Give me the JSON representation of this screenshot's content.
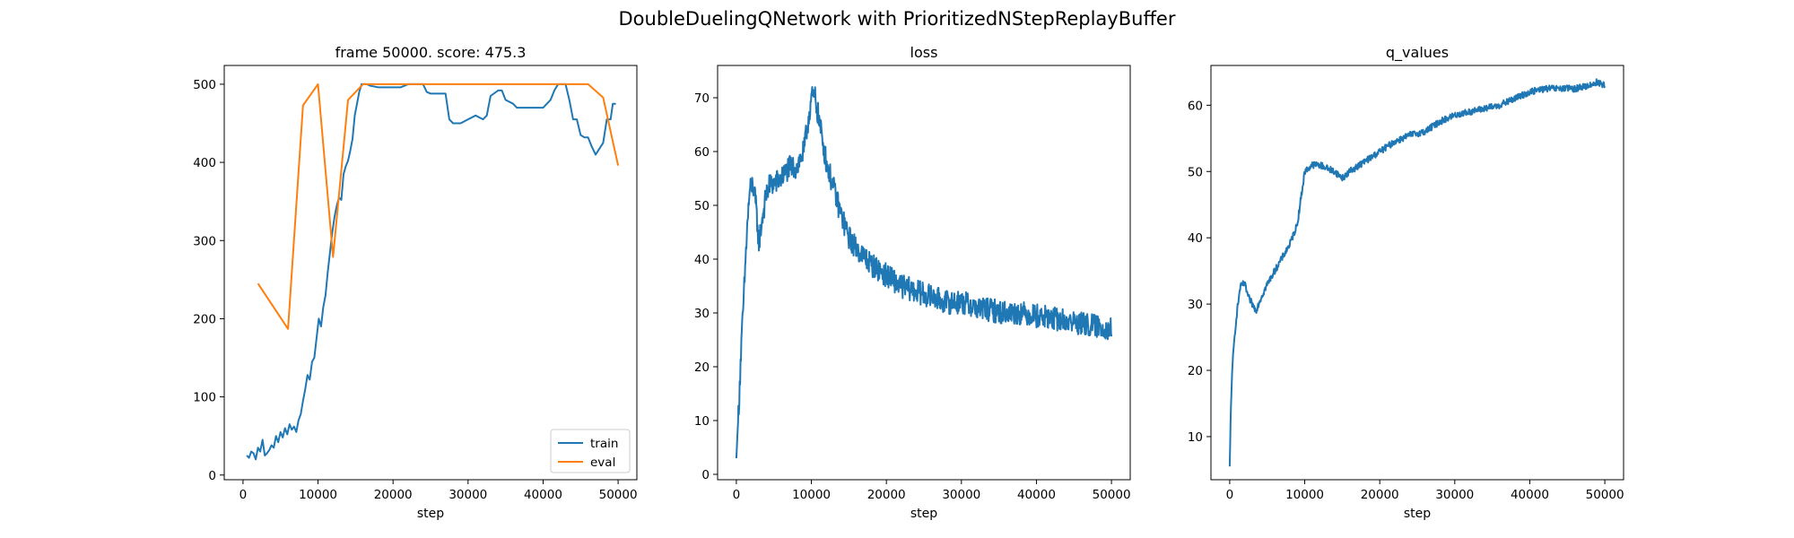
{
  "figure": {
    "suptitle": "DoubleDuelingQNetwork with PrioritizedNStepReplayBuffer"
  },
  "chart_data": [
    {
      "type": "line",
      "title": "frame 50000. score: 475.3",
      "xlabel": "step",
      "ylabel": "",
      "xlim": [
        -2500,
        52500
      ],
      "ylim": [
        -6,
        524
      ],
      "xticks": [
        0,
        10000,
        20000,
        30000,
        40000,
        50000
      ],
      "yticks": [
        0,
        100,
        200,
        300,
        400,
        500
      ],
      "grid": false,
      "legend": "lower right",
      "series": [
        {
          "name": "train",
          "color": "#1f77b4",
          "x": [
            500,
            800,
            1100,
            1400,
            1700,
            2000,
            2300,
            2600,
            2900,
            3200,
            3500,
            3800,
            4100,
            4400,
            4700,
            5000,
            5300,
            5600,
            5900,
            6200,
            6500,
            6800,
            7100,
            7400,
            7700,
            8000,
            8300,
            8600,
            8900,
            9200,
            9500,
            9800,
            10100,
            10400,
            10700,
            11000,
            11300,
            11600,
            11900,
            12200,
            12500,
            12800,
            13100,
            13400,
            13700,
            14000,
            14300,
            14600,
            14900,
            15200,
            15500,
            15800,
            16100,
            16500,
            17000,
            18000,
            19000,
            20000,
            21000,
            22000,
            23000,
            24000,
            24500,
            25000,
            26000,
            27000,
            27500,
            28000,
            29000,
            30000,
            31000,
            32000,
            32500,
            33000,
            34000,
            34500,
            35000,
            36000,
            36500,
            37000,
            38000,
            39000,
            40000,
            41000,
            41500,
            42000,
            43000,
            43500,
            44000,
            44500,
            45000,
            45500,
            46000,
            46500,
            47000,
            48000,
            48500,
            49000,
            49300,
            49700
          ],
          "y": [
            25,
            22,
            30,
            28,
            20,
            35,
            30,
            45,
            25,
            28,
            32,
            38,
            35,
            50,
            42,
            55,
            48,
            60,
            52,
            65,
            58,
            62,
            55,
            70,
            78,
            95,
            110,
            128,
            122,
            145,
            150,
            175,
            200,
            190,
            215,
            230,
            260,
            285,
            310,
            330,
            345,
            355,
            352,
            385,
            395,
            402,
            415,
            430,
            460,
            475,
            490,
            500,
            500,
            500,
            498,
            496,
            496,
            496,
            496,
            500,
            500,
            500,
            490,
            488,
            488,
            488,
            455,
            450,
            450,
            455,
            460,
            455,
            460,
            485,
            492,
            492,
            480,
            475,
            470,
            470,
            470,
            470,
            470,
            480,
            492,
            500,
            500,
            480,
            455,
            455,
            435,
            432,
            432,
            420,
            410,
            425,
            455,
            455,
            475,
            475
          ]
        },
        {
          "name": "eval",
          "color": "#ff7f0e",
          "x": [
            2000,
            6000,
            8000,
            10000,
            12000,
            14000,
            16000,
            18000,
            20000,
            22000,
            24000,
            26000,
            28000,
            30000,
            32000,
            34000,
            36000,
            38000,
            40000,
            42000,
            44000,
            46000,
            48000,
            50000
          ],
          "y": [
            245,
            187,
            473,
            500,
            279,
            480,
            500,
            500,
            500,
            500,
            500,
            500,
            500,
            500,
            500,
            500,
            500,
            500,
            500,
            500,
            500,
            500,
            483,
            396
          ]
        }
      ]
    },
    {
      "type": "line",
      "title": "loss",
      "xlabel": "step",
      "ylabel": "",
      "xlim": [
        -2500,
        52500
      ],
      "ylim": [
        -1,
        76
      ],
      "xticks": [
        0,
        10000,
        20000,
        30000,
        40000,
        50000
      ],
      "yticks": [
        0,
        10,
        20,
        30,
        40,
        50,
        60,
        70
      ],
      "grid": false,
      "series": [
        {
          "name": "",
          "color": "#1f77b4",
          "noise": 2.2,
          "x": [
            0,
            300,
            600,
            1000,
            1400,
            1800,
            2200,
            2600,
            3000,
            3500,
            4000,
            4500,
            5000,
            6000,
            7000,
            8000,
            9000,
            9500,
            10000,
            10500,
            11000,
            11500,
            12000,
            13000,
            14000,
            15000,
            16000,
            18000,
            20000,
            22000,
            24000,
            26000,
            28000,
            30000,
            32000,
            34000,
            36000,
            38000,
            40000,
            42000,
            44000,
            46000,
            48000,
            50000
          ],
          "y": [
            3,
            12,
            22,
            33,
            45,
            53,
            54,
            50,
            43,
            48,
            52,
            54,
            54,
            55,
            57,
            57,
            60,
            65,
            70,
            70,
            66,
            62,
            58,
            53,
            48,
            44,
            42,
            39,
            37,
            35,
            34,
            33,
            32,
            32,
            31,
            30.5,
            30,
            30,
            29.5,
            29,
            28.5,
            28,
            27.5,
            27
          ]
        }
      ]
    },
    {
      "type": "line",
      "title": "q_values",
      "xlabel": "step",
      "ylabel": "",
      "xlim": [
        -2500,
        52500
      ],
      "ylim": [
        3.5,
        66
      ],
      "xticks": [
        0,
        10000,
        20000,
        30000,
        40000,
        50000
      ],
      "yticks": [
        10,
        20,
        30,
        40,
        50,
        60
      ],
      "grid": false,
      "series": [
        {
          "name": "",
          "color": "#1f77b4",
          "noise": 0.5,
          "x": [
            0,
            150,
            300,
            500,
            800,
            1100,
            1400,
            1700,
            2000,
            2500,
            3000,
            3500,
            4000,
            5000,
            6000,
            7000,
            8000,
            9000,
            9500,
            10000,
            11000,
            12000,
            13000,
            14000,
            15000,
            16000,
            18000,
            20000,
            22000,
            24000,
            26000,
            28000,
            30000,
            32000,
            34000,
            36000,
            38000,
            40000,
            42000,
            44000,
            46000,
            48000,
            49000,
            50000
          ],
          "y": [
            5.5,
            14,
            19,
            23,
            27,
            30,
            32.5,
            33,
            33,
            31,
            30,
            29,
            30.5,
            33,
            35,
            37,
            39,
            42,
            46,
            50,
            51,
            51,
            50.5,
            50,
            49,
            50,
            51.5,
            53,
            54.5,
            55.5,
            56,
            57.5,
            58.5,
            59,
            59.5,
            60,
            61,
            62,
            62.5,
            62.5,
            62.5,
            63,
            63.5,
            63
          ]
        }
      ]
    }
  ]
}
